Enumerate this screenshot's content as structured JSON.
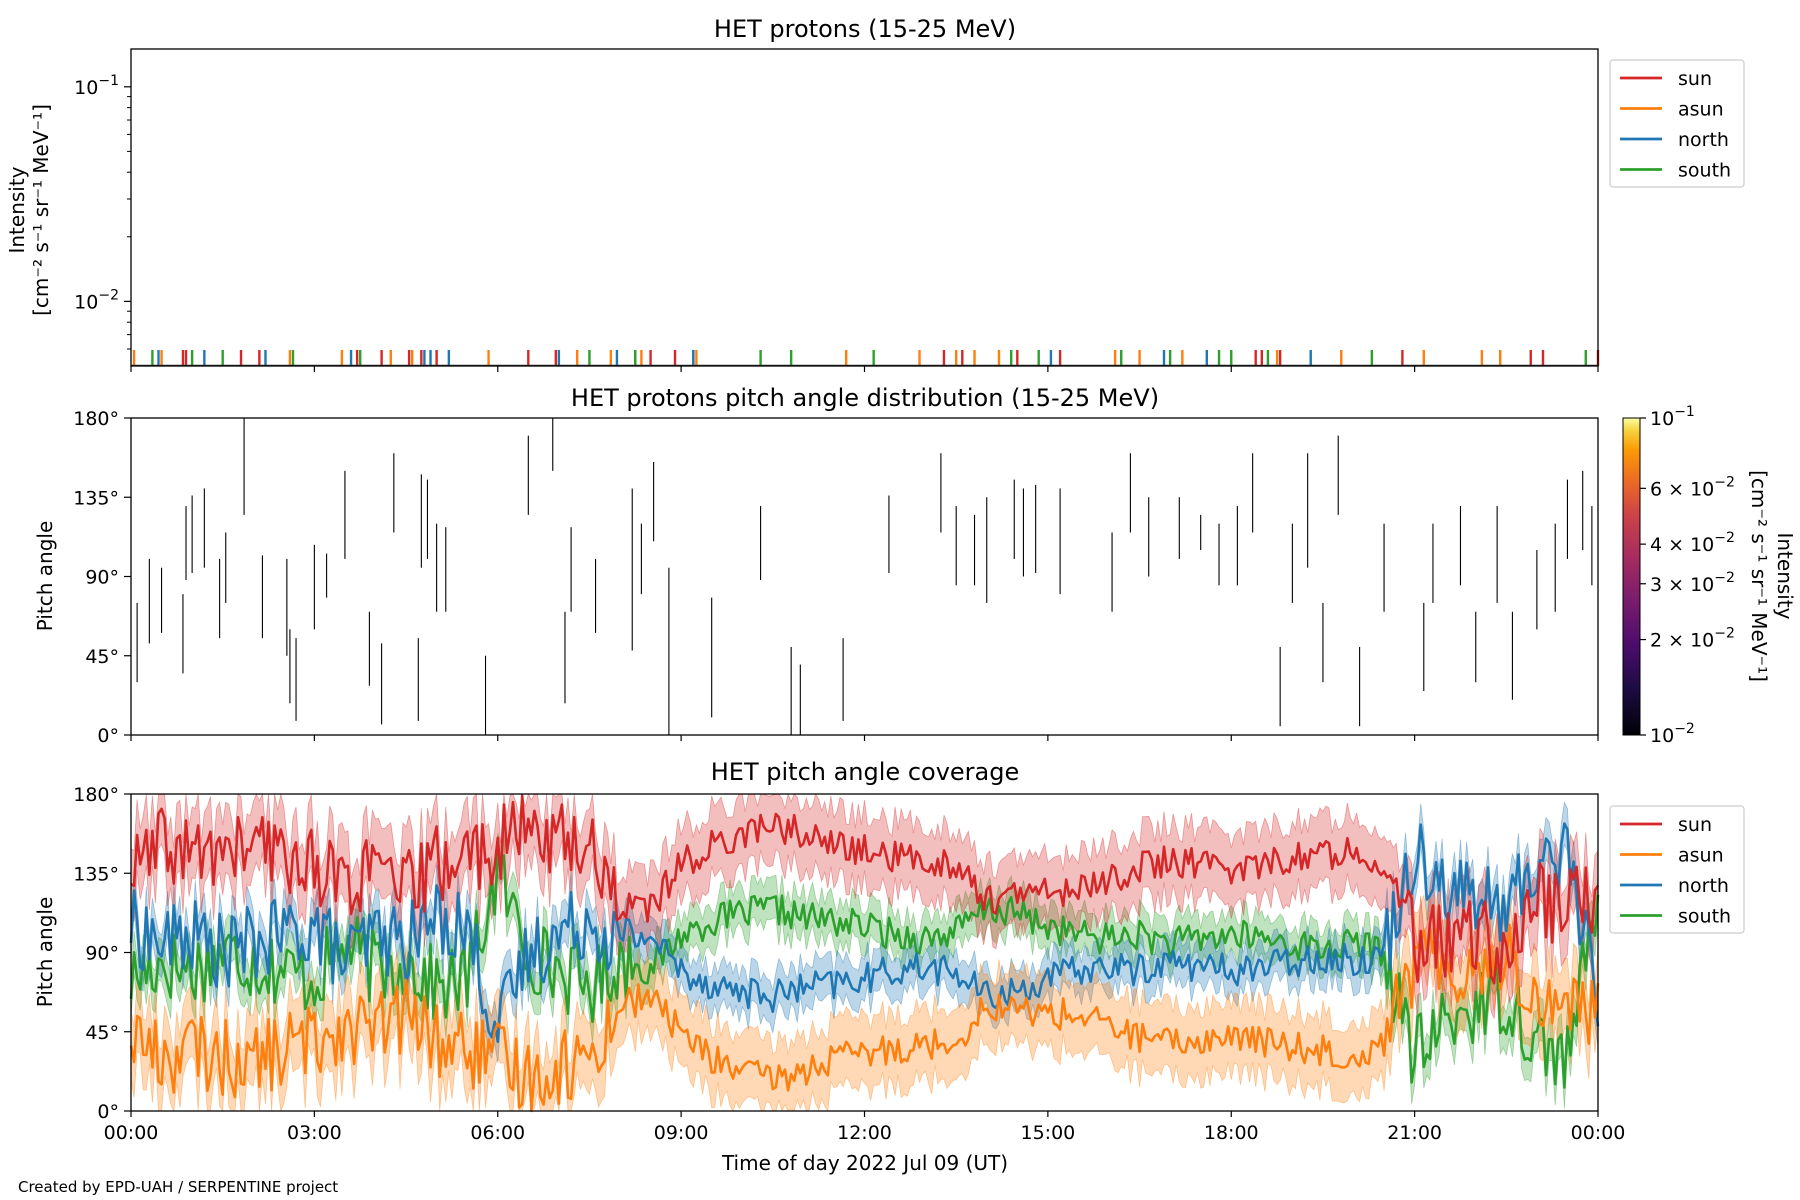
{
  "footer": "Created by EPD-UAH / SERPENTINE project",
  "xlabel": "Time of day 2022 Jul 09 (UT)",
  "x_tick_labels": [
    "00:00",
    "03:00",
    "06:00",
    "09:00",
    "12:00",
    "15:00",
    "18:00",
    "21:00",
    "00:00"
  ],
  "colors": {
    "sun": "#d62728",
    "asun": "#ff7f0e",
    "north": "#1f77b4",
    "south": "#2ca02c"
  },
  "chart_data": [
    {
      "type": "line",
      "title": "HET protons (15-25 MeV)",
      "ylabel_lines": [
        "Intensity",
        "[cm⁻² s⁻¹ sr⁻¹ MeV⁻¹]"
      ],
      "yscale": "log",
      "ylim": [
        0.005,
        0.15
      ],
      "y_ticks": [
        {
          "value": 0.01,
          "base": "10",
          "exp": "−2"
        },
        {
          "value": 0.1,
          "base": "10",
          "exp": "−1"
        }
      ],
      "xlim_hours": [
        0,
        24
      ],
      "legend": [
        "sun",
        "asun",
        "north",
        "south"
      ],
      "legend_position": "outside right top",
      "series": [
        {
          "name": "sun",
          "spike_hours": [
            0.85,
            0.9,
            1.8,
            2.1,
            3.7,
            4.1,
            4.55,
            4.75,
            5.0,
            6.5,
            6.95,
            8.25,
            8.5,
            8.9,
            9.2,
            13.3,
            13.6,
            14.5,
            15.2,
            18.4,
            18.5,
            18.8,
            20.8,
            22.9,
            23.1,
            24.0
          ]
        },
        {
          "name": "asun",
          "spike_hours": [
            0.05,
            0.5,
            2.6,
            3.45,
            4.25,
            4.6,
            5.85,
            7.3,
            7.85,
            8.35,
            9.25,
            11.7,
            12.9,
            13.5,
            13.8,
            14.2,
            16.1,
            16.5,
            17.2,
            18.75,
            19.8,
            21.15,
            22.1,
            22.4
          ]
        },
        {
          "name": "north",
          "spike_hours": [
            0.45,
            1.2,
            2.2,
            3.6,
            4.8,
            4.9,
            5.2,
            7.0,
            7.95,
            9.2,
            15.05,
            16.9,
            17.6,
            19.3
          ]
        },
        {
          "name": "south",
          "spike_hours": [
            0.35,
            1.0,
            1.5,
            2.65,
            3.75,
            7.5,
            8.25,
            10.3,
            10.8,
            12.15,
            14.4,
            14.85,
            16.2,
            17.0,
            17.8,
            18.0,
            18.6,
            20.3,
            23.8
          ]
        }
      ]
    },
    {
      "type": "heatmap",
      "title": "HET protons pitch angle distribution (15-25 MeV)",
      "ylabel": "Pitch angle",
      "ylim": [
        0,
        180
      ],
      "y_tick_labels": [
        "0°",
        "45°",
        "90°",
        "135°",
        "180°"
      ],
      "y_ticks": [
        0,
        45,
        90,
        135,
        180
      ],
      "xlim_hours": [
        0,
        24
      ],
      "colorbar": {
        "label_lines": [
          "Intensity",
          "[cm⁻² s⁻¹ sr⁻¹ MeV⁻¹]"
        ],
        "scale": "log",
        "range": [
          0.01,
          0.1
        ],
        "ticks": [
          {
            "value": 0.01,
            "label": "10",
            "exp": "−2"
          },
          {
            "value": 0.02,
            "label": "2 × 10",
            "exp": "−2"
          },
          {
            "value": 0.03,
            "label": "3 × 10",
            "exp": "−2"
          },
          {
            "value": 0.04,
            "label": "4 × 10",
            "exp": "−2"
          },
          {
            "value": 0.06,
            "label": "6 × 10",
            "exp": "−2"
          },
          {
            "value": 0.1,
            "label": "10",
            "exp": "−1"
          }
        ]
      },
      "segments": [
        [
          0.1,
          30,
          75
        ],
        [
          0.3,
          52,
          100
        ],
        [
          0.5,
          58,
          95
        ],
        [
          0.85,
          35,
          80
        ],
        [
          0.9,
          88,
          130
        ],
        [
          1.0,
          92,
          136
        ],
        [
          1.2,
          95,
          140
        ],
        [
          1.45,
          55,
          100
        ],
        [
          1.55,
          75,
          115
        ],
        [
          1.85,
          125,
          180
        ],
        [
          2.15,
          55,
          102
        ],
        [
          2.55,
          45,
          100
        ],
        [
          2.6,
          18,
          60
        ],
        [
          2.7,
          8,
          55
        ],
        [
          3.0,
          60,
          108
        ],
        [
          3.2,
          78,
          103
        ],
        [
          3.5,
          100,
          150
        ],
        [
          3.9,
          28,
          70
        ],
        [
          4.1,
          6,
          52
        ],
        [
          4.3,
          115,
          160
        ],
        [
          4.7,
          8,
          55
        ],
        [
          4.75,
          95,
          148
        ],
        [
          4.85,
          100,
          145
        ],
        [
          5.0,
          70,
          120
        ],
        [
          5.15,
          70,
          118
        ],
        [
          5.8,
          0,
          45
        ],
        [
          6.5,
          125,
          170
        ],
        [
          6.9,
          150,
          180
        ],
        [
          7.1,
          18,
          70
        ],
        [
          7.2,
          70,
          118
        ],
        [
          7.6,
          58,
          100
        ],
        [
          8.2,
          48,
          140
        ],
        [
          8.35,
          80,
          120
        ],
        [
          8.55,
          110,
          155
        ],
        [
          8.8,
          0,
          95
        ],
        [
          9.5,
          10,
          78
        ],
        [
          10.3,
          88,
          130
        ],
        [
          10.8,
          0,
          50
        ],
        [
          10.95,
          0,
          40
        ],
        [
          11.65,
          8,
          55
        ],
        [
          12.4,
          92,
          136
        ],
        [
          13.25,
          115,
          160
        ],
        [
          13.5,
          85,
          130
        ],
        [
          13.8,
          85,
          125
        ],
        [
          14.0,
          75,
          135
        ],
        [
          14.45,
          100,
          145
        ],
        [
          14.6,
          90,
          140
        ],
        [
          14.8,
          92,
          142
        ],
        [
          15.2,
          80,
          140
        ],
        [
          16.05,
          70,
          115
        ],
        [
          16.35,
          115,
          160
        ],
        [
          16.65,
          90,
          135
        ],
        [
          17.15,
          100,
          135
        ],
        [
          17.5,
          105,
          125
        ],
        [
          17.8,
          85,
          120
        ],
        [
          18.1,
          85,
          130
        ],
        [
          18.35,
          115,
          160
        ],
        [
          18.8,
          5,
          50
        ],
        [
          19.0,
          75,
          120
        ],
        [
          19.25,
          95,
          160
        ],
        [
          19.5,
          30,
          75
        ],
        [
          19.75,
          125,
          170
        ],
        [
          20.1,
          5,
          50
        ],
        [
          20.5,
          70,
          120
        ],
        [
          21.15,
          25,
          75
        ],
        [
          21.3,
          75,
          120
        ],
        [
          21.75,
          85,
          130
        ],
        [
          22.0,
          30,
          70
        ],
        [
          22.35,
          75,
          130
        ],
        [
          22.6,
          20,
          70
        ],
        [
          23.0,
          60,
          105
        ],
        [
          23.3,
          70,
          120
        ],
        [
          23.5,
          100,
          145
        ],
        [
          23.75,
          105,
          150
        ],
        [
          23.9,
          85,
          130
        ]
      ]
    },
    {
      "type": "area",
      "title": "HET pitch angle coverage",
      "ylabel": "Pitch angle",
      "ylim": [
        0,
        180
      ],
      "y_tick_labels": [
        "0°",
        "45°",
        "90°",
        "135°",
        "180°"
      ],
      "y_ticks": [
        0,
        45,
        90,
        135,
        180
      ],
      "xlim_hours": [
        0,
        24
      ],
      "legend": [
        "sun",
        "asun",
        "north",
        "south"
      ],
      "legend_position": "outside right top",
      "series": [
        {
          "name": "sun",
          "x_hours": [
            0,
            0.5,
            1,
            1.5,
            2,
            2.5,
            3,
            3.5,
            4,
            4.5,
            5,
            5.5,
            6,
            6.5,
            7,
            7.5,
            8,
            8.5,
            9,
            9.5,
            10,
            10.5,
            11,
            11.5,
            12,
            12.5,
            13,
            13.5,
            14,
            14.5,
            15,
            15.5,
            16,
            16.5,
            17,
            17.5,
            18,
            18.5,
            19,
            19.5,
            20,
            20.5,
            21,
            21.5,
            22,
            22.5,
            23,
            23.5,
            24
          ],
          "mid": [
            135,
            150,
            145,
            148,
            150,
            145,
            140,
            130,
            135,
            125,
            140,
            145,
            150,
            160,
            155,
            150,
            120,
            115,
            140,
            150,
            158,
            162,
            158,
            150,
            148,
            144,
            142,
            140,
            120,
            122,
            125,
            125,
            132,
            138,
            142,
            140,
            138,
            140,
            144,
            145,
            150,
            140,
            95,
            95,
            100,
            90,
            120,
            115,
            125
          ],
          "half_width": [
            20,
            20,
            20,
            20,
            20,
            20,
            20,
            20,
            20,
            20,
            20,
            20,
            20,
            20,
            20,
            20,
            20,
            20,
            20,
            20,
            20,
            20,
            20,
            20,
            20,
            20,
            20,
            20,
            20,
            20,
            20,
            20,
            20,
            20,
            20,
            20,
            20,
            20,
            20,
            20,
            20,
            20,
            20,
            20,
            20,
            20,
            20,
            20,
            20
          ]
        },
        {
          "name": "asun",
          "x_hours": [
            0,
            0.5,
            1,
            1.5,
            2,
            2.5,
            3,
            3.5,
            4,
            4.5,
            5,
            5.5,
            6,
            6.5,
            7,
            7.5,
            8,
            8.5,
            9,
            9.5,
            10,
            10.5,
            11,
            11.5,
            12,
            12.5,
            13,
            13.5,
            14,
            14.5,
            15,
            15.5,
            16,
            16.5,
            17,
            17.5,
            18,
            18.5,
            19,
            19.5,
            20,
            20.5,
            21,
            21.5,
            22,
            22.5,
            23,
            23.5,
            24
          ],
          "mid": [
            45,
            30,
            35,
            30,
            28,
            35,
            40,
            50,
            45,
            55,
            40,
            35,
            28,
            20,
            25,
            30,
            60,
            65,
            45,
            30,
            22,
            18,
            22,
            30,
            32,
            36,
            38,
            40,
            60,
            58,
            55,
            55,
            48,
            42,
            38,
            40,
            42,
            40,
            36,
            35,
            30,
            40,
            85,
            85,
            80,
            90,
            60,
            65,
            55
          ],
          "half_width": [
            20,
            20,
            20,
            20,
            20,
            20,
            20,
            20,
            20,
            20,
            20,
            20,
            20,
            20,
            20,
            20,
            20,
            20,
            20,
            20,
            20,
            20,
            20,
            20,
            20,
            20,
            20,
            20,
            20,
            20,
            20,
            20,
            20,
            20,
            20,
            20,
            20,
            20,
            20,
            20,
            20,
            20,
            20,
            20,
            20,
            20,
            20,
            20,
            20
          ]
        },
        {
          "name": "north",
          "x_hours": [
            0,
            0.5,
            1,
            1.5,
            2,
            2.5,
            3,
            3.5,
            4,
            4.5,
            5,
            5.5,
            6,
            6.5,
            7,
            7.5,
            8,
            8.5,
            9,
            9.5,
            10,
            10.5,
            11,
            11.5,
            12,
            12.5,
            13,
            13.5,
            14,
            14.5,
            15,
            15.5,
            16,
            16.5,
            17,
            17.5,
            18,
            18.5,
            19,
            19.5,
            20,
            20.5,
            21,
            21.5,
            22,
            22.5,
            23,
            23.5,
            24
          ],
          "mid": [
            105,
            95,
            100,
            90,
            95,
            100,
            105,
            85,
            100,
            95,
            110,
            105,
            45,
            90,
            100,
            110,
            95,
            100,
            80,
            72,
            68,
            65,
            70,
            72,
            75,
            80,
            82,
            78,
            65,
            68,
            75,
            80,
            82,
            80,
            85,
            82,
            80,
            82,
            85,
            88,
            85,
            90,
            150,
            130,
            120,
            115,
            140,
            150,
            60
          ],
          "half_width": [
            12,
            12,
            12,
            12,
            12,
            12,
            12,
            12,
            12,
            12,
            12,
            12,
            12,
            12,
            12,
            12,
            12,
            12,
            12,
            12,
            12,
            12,
            12,
            12,
            12,
            12,
            12,
            12,
            12,
            12,
            12,
            12,
            12,
            12,
            12,
            12,
            12,
            12,
            12,
            12,
            12,
            12,
            12,
            12,
            12,
            12,
            12,
            12,
            12
          ]
        },
        {
          "name": "south",
          "x_hours": [
            0,
            0.5,
            1,
            1.5,
            2,
            2.5,
            3,
            3.5,
            4,
            4.5,
            5,
            5.5,
            6,
            6.5,
            7,
            7.5,
            8,
            8.5,
            9,
            9.5,
            10,
            10.5,
            11,
            11.5,
            12,
            12.5,
            13,
            13.5,
            14,
            14.5,
            15,
            15.5,
            16,
            16.5,
            17,
            17.5,
            18,
            18.5,
            19,
            19.5,
            20,
            20.5,
            21,
            21.5,
            22,
            22.5,
            23,
            23.5,
            24
          ],
          "mid": [
            75,
            85,
            80,
            90,
            85,
            80,
            75,
            95,
            80,
            85,
            70,
            75,
            135,
            90,
            80,
            70,
            85,
            80,
            100,
            108,
            112,
            115,
            110,
            108,
            105,
            100,
            98,
            102,
            115,
            112,
            105,
            100,
            98,
            100,
            95,
            98,
            100,
            98,
            95,
            92,
            95,
            90,
            30,
            50,
            60,
            65,
            40,
            30,
            120
          ],
          "half_width": [
            12,
            12,
            12,
            12,
            12,
            12,
            12,
            12,
            12,
            12,
            12,
            12,
            12,
            12,
            12,
            12,
            12,
            12,
            12,
            12,
            12,
            12,
            12,
            12,
            12,
            12,
            12,
            12,
            12,
            12,
            12,
            12,
            12,
            12,
            12,
            12,
            12,
            12,
            12,
            12,
            12,
            12,
            12,
            12,
            12,
            12,
            12,
            12,
            12
          ]
        }
      ]
    }
  ]
}
